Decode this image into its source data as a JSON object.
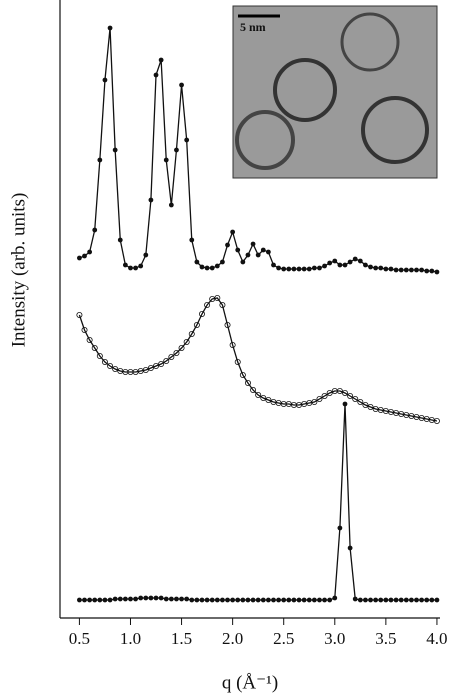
{
  "chart_data": {
    "type": "line",
    "y_label": "Intensity (arb. units)",
    "x_label": "q (Å⁻¹)",
    "annotations": [
      "5 nm"
    ],
    "x": [
      0.5,
      0.55,
      0.6,
      0.65,
      0.7,
      0.75,
      0.8,
      0.85,
      0.9,
      0.95,
      1.0,
      1.05,
      1.1,
      1.15,
      1.2,
      1.25,
      1.3,
      1.35,
      1.4,
      1.45,
      1.5,
      1.55,
      1.6,
      1.65,
      1.7,
      1.75,
      1.8,
      1.85,
      1.9,
      1.95,
      2.0,
      2.05,
      2.1,
      2.15,
      2.2,
      2.25,
      2.3,
      2.35,
      2.4,
      2.45,
      2.5,
      2.55,
      2.6,
      2.65,
      2.7,
      2.75,
      2.8,
      2.85,
      2.9,
      2.95,
      3.0,
      3.05,
      3.1,
      3.15,
      3.2,
      3.25,
      3.3,
      3.35,
      3.4,
      3.45,
      3.5,
      3.55,
      3.6,
      3.65,
      3.7,
      3.75,
      3.8,
      3.85,
      3.9,
      3.95,
      4.0
    ],
    "series": [
      {
        "color": "#111111",
        "marker": "filled",
        "values": [
          360,
          362,
          366,
          388,
          458,
          538,
          590,
          468,
          378,
          353,
          350,
          350,
          352,
          363,
          418,
          543,
          558,
          458,
          413,
          468,
          533,
          478,
          378,
          356,
          351,
          350,
          350,
          352,
          356,
          373,
          386,
          368,
          356,
          363,
          374,
          363,
          368,
          366,
          353,
          350,
          349,
          349,
          349,
          349,
          349,
          349,
          350,
          350,
          352,
          355,
          357,
          353,
          353,
          356,
          359,
          357,
          353,
          351,
          350,
          350,
          349,
          349,
          348,
          348,
          348,
          348,
          348,
          348,
          347,
          347,
          346
        ]
      },
      {
        "color": "#111111",
        "marker": "open",
        "values": [
          303,
          288,
          278,
          270,
          262,
          256,
          252,
          249,
          247,
          246,
          246,
          246,
          247,
          248,
          250,
          252,
          254,
          257,
          261,
          265,
          270,
          276,
          284,
          293,
          304,
          313,
          319,
          320,
          313,
          293,
          273,
          256,
          243,
          235,
          228,
          223,
          220,
          218,
          216,
          215,
          214,
          214,
          213,
          213,
          214,
          215,
          216,
          219,
          222,
          225,
          227,
          227,
          225,
          222,
          219,
          216,
          213,
          211,
          209,
          208,
          207,
          206,
          205,
          204,
          203,
          202,
          201,
          200,
          199,
          198,
          197
        ]
      },
      {
        "color": "#111111",
        "marker": "filled",
        "values": [
          18,
          18,
          18,
          18,
          18,
          18,
          18,
          19,
          19,
          19,
          19,
          19,
          20,
          20,
          20,
          20,
          20,
          19,
          19,
          19,
          19,
          19,
          18,
          18,
          18,
          18,
          18,
          18,
          18,
          18,
          18,
          18,
          18,
          18,
          18,
          18,
          18,
          18,
          18,
          18,
          18,
          18,
          18,
          18,
          18,
          18,
          18,
          18,
          18,
          18,
          20,
          90,
          214,
          70,
          19,
          18,
          18,
          18,
          18,
          18,
          18,
          18,
          18,
          18,
          18,
          18,
          18,
          18,
          18,
          18,
          18
        ]
      }
    ],
    "xlim": [
      0.31,
      4.03
    ],
    "ylim": [
      0,
      618
    ],
    "xticks": [
      0.5,
      {
        "value": 1,
        "label": "1.0"
      },
      1.5,
      {
        "value": 2,
        "label": "2.0"
      },
      2.5,
      {
        "value": 3,
        "label": "3.0"
      },
      3.5,
      {
        "value": 4,
        "label": "4.0"
      }
    ],
    "grid": false
  }
}
